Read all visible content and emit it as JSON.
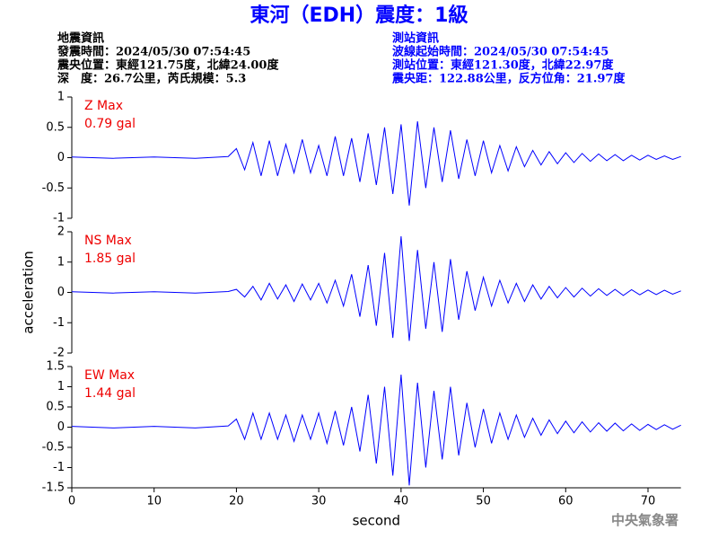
{
  "header": {
    "title": "東河（EDH）震度：1級",
    "left_lines": [
      "地震資訊",
      "發震時間：2024/05/30 07:54:45",
      "震央位置：東經121.75度，北緯24.00度",
      "深　度：26.7公里，芮氏規模：5.3"
    ],
    "right_lines": [
      "測站資訊",
      "波線起始時間：2024/05/30 07:54:45",
      "測站位置：東經121.30度，北緯22.97度",
      "震央距：122.88公里，反方位角：21.97度"
    ],
    "watermark": "中央氣象署"
  },
  "chart_data": [
    {
      "type": "line",
      "annotation": "Z Max",
      "max_label": "0.79 gal",
      "xlim": [
        0,
        74
      ],
      "ylim": [
        -1,
        1
      ],
      "yticks": [
        -1,
        -0.5,
        0,
        0.5,
        1
      ],
      "x": [
        0,
        5,
        10,
        15,
        19,
        20,
        21,
        22,
        23,
        24,
        25,
        26,
        27,
        28,
        29,
        30,
        31,
        32,
        33,
        34,
        35,
        36,
        37,
        38,
        39,
        40,
        41,
        42,
        43,
        44,
        45,
        46,
        47,
        48,
        49,
        50,
        51,
        52,
        53,
        54,
        55,
        56,
        57,
        58,
        59,
        60,
        61,
        62,
        63,
        64,
        65,
        66,
        67,
        68,
        69,
        70,
        71,
        72,
        73,
        74
      ],
      "series": [
        {
          "color": "#0000ff",
          "values": [
            0.01,
            -0.01,
            0.01,
            -0.01,
            0.02,
            0.15,
            -0.2,
            0.25,
            -0.3,
            0.28,
            -0.3,
            0.22,
            -0.25,
            0.3,
            -0.25,
            0.2,
            -0.3,
            0.35,
            -0.3,
            0.32,
            -0.4,
            0.4,
            -0.45,
            0.5,
            -0.6,
            0.55,
            -0.79,
            0.6,
            -0.5,
            0.5,
            -0.4,
            0.45,
            -0.35,
            0.3,
            -0.3,
            0.28,
            -0.25,
            0.2,
            -0.22,
            0.18,
            -0.15,
            0.12,
            -0.12,
            0.1,
            -0.1,
            0.08,
            -0.08,
            0.07,
            -0.06,
            0.06,
            -0.05,
            0.05,
            -0.05,
            0.04,
            -0.04,
            0.04,
            -0.03,
            0.03,
            -0.03,
            0.02
          ]
        }
      ]
    },
    {
      "type": "line",
      "annotation": "NS Max",
      "max_label": "1.85 gal",
      "ylabel": "acceleration",
      "xlim": [
        0,
        74
      ],
      "ylim": [
        -2,
        2
      ],
      "yticks": [
        -2,
        -1,
        0,
        1,
        2
      ],
      "x": [
        0,
        5,
        10,
        15,
        19,
        20,
        21,
        22,
        23,
        24,
        25,
        26,
        27,
        28,
        29,
        30,
        31,
        32,
        33,
        34,
        35,
        36,
        37,
        38,
        39,
        40,
        41,
        42,
        43,
        44,
        45,
        46,
        47,
        48,
        49,
        50,
        51,
        52,
        53,
        54,
        55,
        56,
        57,
        58,
        59,
        60,
        61,
        62,
        63,
        64,
        65,
        66,
        67,
        68,
        69,
        70,
        71,
        72,
        73,
        74
      ],
      "series": [
        {
          "color": "#0000ff",
          "values": [
            0.02,
            -0.02,
            0.02,
            -0.02,
            0.03,
            0.1,
            -0.15,
            0.2,
            -0.25,
            0.3,
            -0.22,
            0.25,
            -0.3,
            0.28,
            -0.25,
            0.3,
            -0.35,
            0.4,
            -0.45,
            0.6,
            -0.8,
            0.9,
            -1.1,
            1.3,
            -1.5,
            1.85,
            -1.6,
            1.4,
            -1.2,
            1.0,
            -1.3,
            1.1,
            -0.9,
            0.7,
            -0.6,
            0.5,
            -0.45,
            0.4,
            -0.35,
            0.3,
            -0.3,
            0.25,
            -0.22,
            0.2,
            -0.18,
            0.16,
            -0.15,
            0.14,
            -0.12,
            0.12,
            -0.1,
            0.1,
            -0.1,
            0.09,
            -0.08,
            0.08,
            -0.07,
            0.07,
            -0.06,
            0.05
          ]
        }
      ]
    },
    {
      "type": "line",
      "annotation": "EW Max",
      "max_label": "1.44 gal",
      "xlabel": "second",
      "xlim": [
        0,
        74
      ],
      "xticks": [
        0,
        10,
        20,
        30,
        40,
        50,
        60,
        70
      ],
      "ylim": [
        -1.5,
        1.5
      ],
      "yticks": [
        -1.5,
        -1,
        -0.5,
        0,
        0.5,
        1,
        1.5
      ],
      "x": [
        0,
        5,
        10,
        15,
        19,
        20,
        21,
        22,
        23,
        24,
        25,
        26,
        27,
        28,
        29,
        30,
        31,
        32,
        33,
        34,
        35,
        36,
        37,
        38,
        39,
        40,
        41,
        42,
        43,
        44,
        45,
        46,
        47,
        48,
        49,
        50,
        51,
        52,
        53,
        54,
        55,
        56,
        57,
        58,
        59,
        60,
        61,
        62,
        63,
        64,
        65,
        66,
        67,
        68,
        69,
        70,
        71,
        72,
        73,
        74
      ],
      "series": [
        {
          "color": "#0000ff",
          "values": [
            0.02,
            -0.02,
            0.02,
            -0.02,
            0.03,
            0.2,
            -0.3,
            0.35,
            -0.3,
            0.35,
            -0.3,
            0.3,
            -0.35,
            0.3,
            -0.3,
            0.35,
            -0.4,
            0.4,
            -0.45,
            0.5,
            -0.6,
            0.8,
            -0.9,
            1.0,
            -1.2,
            1.3,
            -1.44,
            1.1,
            -1.0,
            0.9,
            -0.8,
            1.0,
            -0.7,
            0.6,
            -0.5,
            0.45,
            -0.4,
            0.35,
            -0.3,
            0.3,
            -0.25,
            0.22,
            -0.2,
            0.18,
            -0.16,
            0.15,
            -0.14,
            0.13,
            -0.12,
            0.11,
            -0.1,
            0.1,
            -0.09,
            0.08,
            -0.08,
            0.07,
            -0.06,
            0.06,
            -0.05,
            0.05
          ]
        }
      ]
    }
  ]
}
